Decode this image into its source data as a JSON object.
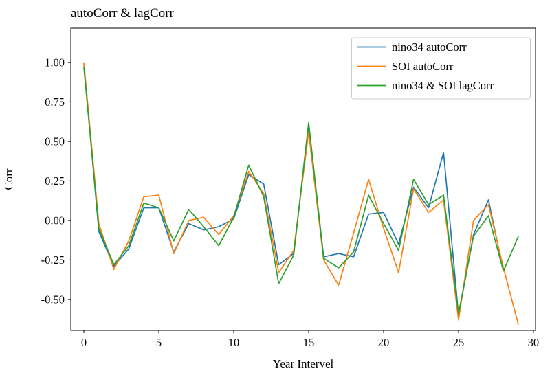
{
  "figure": {
    "title": "autoCorr & lagCorr",
    "xlabel": "Year Intervel",
    "ylabel": "Corr"
  },
  "chart_data": {
    "type": "line",
    "title": "autoCorr & lagCorr",
    "xlabel": "Year Intervel",
    "ylabel": "Corr",
    "grid": false,
    "legend_position": "upper right",
    "xlim": [
      -0.87,
      30.14
    ],
    "ylim": [
      -0.696,
      1.217
    ],
    "xticks": [
      0,
      5,
      10,
      15,
      20,
      25,
      30
    ],
    "xtick_labels": [
      "0",
      "5",
      "10",
      "15",
      "20",
      "25",
      "30"
    ],
    "yticks": [
      1.0,
      0.75,
      0.5,
      0.25,
      0.0,
      -0.25,
      -0.5
    ],
    "ytick_labels": [
      "1.00",
      "0.75",
      "0.50",
      "0.25",
      "0.00",
      "-0.25",
      "-0.50"
    ],
    "x": [
      0,
      1,
      2,
      3,
      4,
      5,
      6,
      7,
      8,
      9,
      10,
      11,
      12,
      13,
      14,
      15,
      16,
      17,
      18,
      19,
      20,
      21,
      22,
      23,
      24,
      25,
      26,
      27,
      28,
      29
    ],
    "series": [
      {
        "name": "nino34 autoCorr",
        "color": "#1f77b4",
        "values": [
          1.0,
          -0.07,
          -0.29,
          -0.18,
          0.08,
          0.08,
          -0.2,
          -0.02,
          -0.06,
          -0.04,
          0.01,
          0.29,
          0.23,
          -0.28,
          -0.21,
          0.6,
          -0.23,
          -0.21,
          -0.23,
          0.04,
          0.05,
          -0.15,
          0.21,
          0.08,
          0.43,
          -0.6,
          -0.09,
          0.13,
          -0.32,
          null
        ]
      },
      {
        "name": "SOI autoCorr",
        "color": "#ff7f0e",
        "values": [
          1.0,
          -0.02,
          -0.31,
          -0.13,
          0.15,
          0.16,
          -0.21,
          0.0,
          0.02,
          -0.09,
          0.03,
          0.31,
          0.17,
          -0.33,
          -0.19,
          0.56,
          -0.25,
          -0.41,
          -0.08,
          0.26,
          -0.05,
          -0.33,
          0.2,
          0.05,
          0.13,
          -0.63,
          0.0,
          0.1,
          -0.3,
          -0.66
        ]
      },
      {
        "name": "nino34 & SOI lagCorr",
        "color": "#2ca02c",
        "values": [
          0.97,
          -0.05,
          -0.28,
          -0.16,
          0.11,
          0.08,
          -0.13,
          0.07,
          -0.04,
          -0.16,
          0.02,
          0.35,
          0.15,
          -0.4,
          -0.22,
          0.62,
          -0.24,
          -0.3,
          -0.2,
          0.16,
          -0.02,
          -0.19,
          0.26,
          0.1,
          0.16,
          -0.59,
          -0.1,
          0.03,
          -0.32,
          -0.1
        ]
      }
    ],
    "legend": {
      "items": [
        {
          "label": "nino34 autoCorr",
          "color": "#1f77b4"
        },
        {
          "label": "SOI autoCorr",
          "color": "#ff7f0e"
        },
        {
          "label": "nino34 & SOI lagCorr",
          "color": "#2ca02c"
        }
      ]
    }
  }
}
